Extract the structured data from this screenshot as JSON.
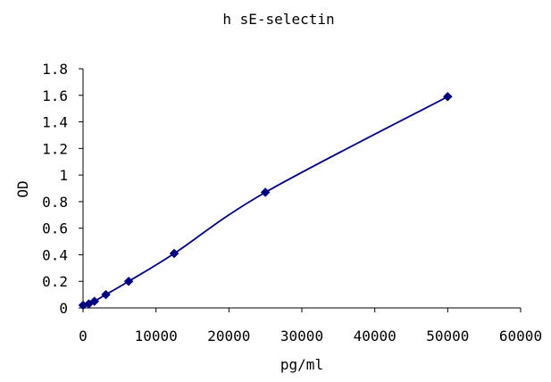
{
  "chart_data": {
    "type": "line",
    "title": "h sE-selectin",
    "xlabel": "pg/ml",
    "ylabel": "OD",
    "xlim": [
      0,
      60000
    ],
    "ylim": [
      0,
      1.8
    ],
    "x_ticks": [
      "0",
      "10000",
      "20000",
      "30000",
      "40000",
      "50000",
      "60000"
    ],
    "y_ticks": [
      "0",
      "0.2",
      "0.4",
      "0.6",
      "0.8",
      "1",
      "1.2",
      "1.4",
      "1.6",
      "1.8"
    ],
    "grid": false,
    "legend": "none",
    "marker": "diamond",
    "series": [
      {
        "color": "#000080",
        "points": [
          {
            "x": 0,
            "y": 0.02
          },
          {
            "x": 781,
            "y": 0.03
          },
          {
            "x": 1563,
            "y": 0.05
          },
          {
            "x": 3125,
            "y": 0.1
          },
          {
            "x": 6250,
            "y": 0.2
          },
          {
            "x": 12500,
            "y": 0.41
          },
          {
            "x": 25000,
            "y": 0.87
          },
          {
            "x": 50000,
            "y": 1.59
          }
        ]
      }
    ]
  }
}
